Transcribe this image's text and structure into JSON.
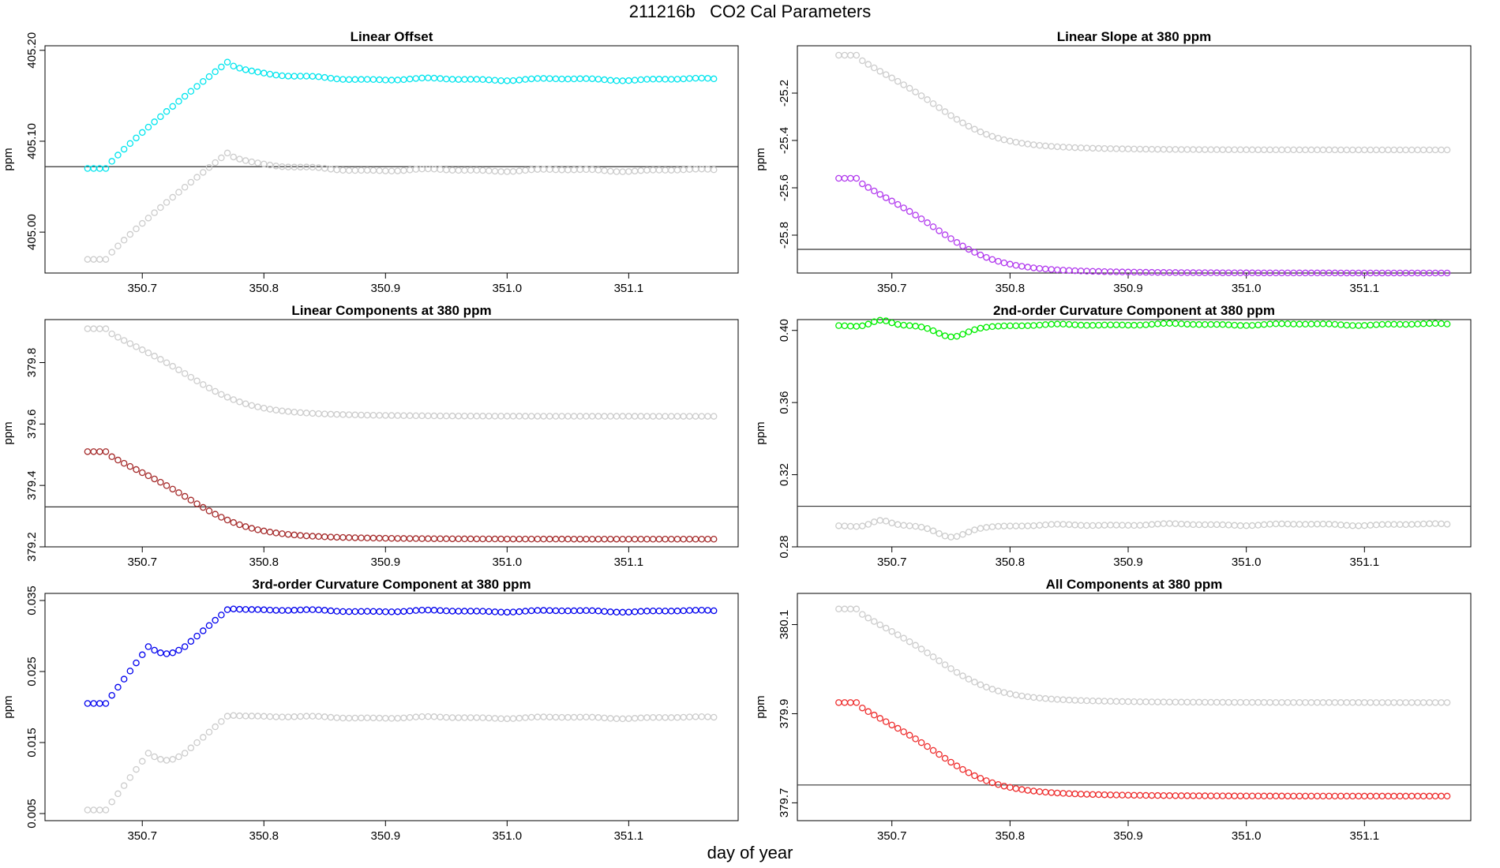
{
  "figure": {
    "title": "211216b   CO2 Cal Parameters",
    "xlabel": "day of year"
  },
  "chart_data": [
    {
      "type": "scatter",
      "title": "Linear Offset",
      "ylabel": "ppm",
      "xlim": [
        350.62,
        351.19
      ],
      "ylim": [
        404.955,
        405.205
      ],
      "xticks": [
        350.7,
        350.8,
        350.9,
        351.0,
        351.1
      ],
      "xtick_labels": [
        "350.7",
        "350.8",
        "350.9",
        "351.0",
        "351.1"
      ],
      "yticks": [
        405.0,
        405.1,
        405.2
      ],
      "ytick_labels": [
        "405.00",
        "405.10",
        "405.20"
      ],
      "hline": 405.072,
      "series": [
        {
          "color": "#00E5EE",
          "y_start": 405.07,
          "y_mid": 405.187,
          "y_end": 405.168
        },
        {
          "color": "#CCCCCC",
          "y_start": 404.97,
          "y_mid": 405.087,
          "y_end": 405.068
        }
      ],
      "shape": "offset"
    },
    {
      "type": "scatter",
      "title": "Linear Slope at 380 ppm",
      "ylabel": "ppm",
      "xlim": [
        350.62,
        351.19
      ],
      "ylim": [
        -25.96,
        -25.0
      ],
      "xticks": [
        350.7,
        350.8,
        350.9,
        351.0,
        351.1
      ],
      "xtick_labels": [
        "350.7",
        "350.8",
        "350.9",
        "351.0",
        "351.1"
      ],
      "yticks": [
        -25.8,
        -25.6,
        -25.4,
        -25.2
      ],
      "ytick_labels": [
        "-25.8",
        "-25.6",
        "-25.4",
        "-25.2"
      ],
      "hline": -25.86,
      "series": [
        {
          "color": "#CCCCCC",
          "y_start": -25.04,
          "y_end": -25.44
        },
        {
          "color": "#B23AEE",
          "y_start": -25.56,
          "y_end": -25.96
        }
      ],
      "shape": "decay"
    },
    {
      "type": "scatter",
      "title": "Linear Components at 380 ppm",
      "ylabel": "ppm",
      "xlim": [
        350.62,
        351.19
      ],
      "ylim": [
        379.2,
        379.94
      ],
      "xticks": [
        350.7,
        350.8,
        350.9,
        351.0,
        351.1
      ],
      "xtick_labels": [
        "350.7",
        "350.8",
        "350.9",
        "351.0",
        "351.1"
      ],
      "yticks": [
        379.2,
        379.4,
        379.6,
        379.8
      ],
      "ytick_labels": [
        "379.2",
        "379.4",
        "379.6",
        "379.8"
      ],
      "hline": 379.33,
      "series": [
        {
          "color": "#CCCCCC",
          "y_start": 379.91,
          "y_end": 379.625
        },
        {
          "color": "#A52A2A",
          "y_start": 379.51,
          "y_end": 379.225
        }
      ],
      "shape": "decay"
    },
    {
      "type": "scatter",
      "title": "2nd-order Curvature Component at 380 ppm",
      "ylabel": "ppm",
      "xlim": [
        350.62,
        351.19
      ],
      "ylim": [
        0.28,
        0.406
      ],
      "xticks": [
        350.7,
        350.8,
        350.9,
        351.0,
        351.1
      ],
      "xtick_labels": [
        "350.7",
        "350.8",
        "350.9",
        "351.0",
        "351.1"
      ],
      "yticks": [
        0.28,
        0.32,
        0.36,
        0.4
      ],
      "ytick_labels": [
        "0.28",
        "0.32",
        "0.36",
        "0.40"
      ],
      "hline": 0.3025,
      "series": [
        {
          "color": "#00EE00",
          "base": 0.4025
        },
        {
          "color": "#CCCCCC",
          "base": 0.2915
        }
      ],
      "shape": "flat"
    },
    {
      "type": "scatter",
      "title": "3rd-order Curvature Component at 380 ppm",
      "ylabel": "ppm",
      "xlim": [
        350.62,
        351.19
      ],
      "ylim": [
        0.004,
        0.036
      ],
      "xticks": [
        350.7,
        350.8,
        350.9,
        351.0,
        351.1
      ],
      "xtick_labels": [
        "350.7",
        "350.8",
        "350.9",
        "351.0",
        "351.1"
      ],
      "yticks": [
        0.005,
        0.015,
        0.025,
        0.035
      ],
      "ytick_labels": [
        "0.005",
        "0.015",
        "0.025",
        "0.035"
      ],
      "hline": null,
      "series": [
        {
          "color": "#0000EE",
          "y_start": 0.0205,
          "y_hump": 0.0285,
          "y_mid": 0.034,
          "y_end": 0.0335
        },
        {
          "color": "#CCCCCC",
          "y_start": 0.0055,
          "y_hump": 0.0135,
          "y_mid": 0.019,
          "y_end": 0.0185
        }
      ],
      "shape": "third"
    },
    {
      "type": "scatter",
      "title": "All Components at 380 ppm",
      "ylabel": "ppm",
      "xlim": [
        350.62,
        351.19
      ],
      "ylim": [
        379.66,
        380.17
      ],
      "xticks": [
        350.7,
        350.8,
        350.9,
        351.0,
        351.1
      ],
      "xtick_labels": [
        "350.7",
        "350.8",
        "350.9",
        "351.0",
        "351.1"
      ],
      "yticks": [
        379.7,
        379.9,
        380.1
      ],
      "ytick_labels": [
        "379.7",
        "379.9",
        "380.1"
      ],
      "hline": 379.74,
      "series": [
        {
          "color": "#CCCCCC",
          "y_start": 380.135,
          "y_end": 379.925
        },
        {
          "color": "#EE2C2C",
          "y_start": 379.925,
          "y_end": 379.715
        }
      ],
      "shape": "decay"
    }
  ]
}
